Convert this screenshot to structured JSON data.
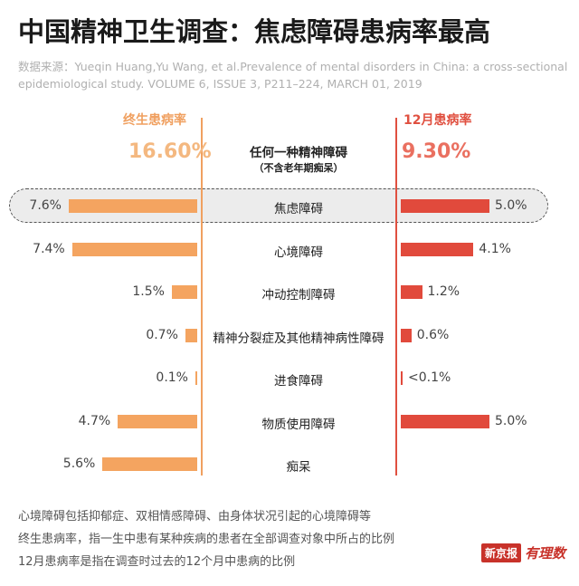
{
  "title": "中国精神卫生调查：焦虑障碍患病率最高",
  "source_line1": "数据来源：Yueqin Huang,Yu Wang, et al.Prevalence of mental disorders in China: a cross-sectional",
  "source_line2": "epidemiological study. VOLUME 6, ISSUE 3, P211–224, MARCH 01, 2019",
  "colors": {
    "lifetime": "#f4a460",
    "twelve_month": "#e14a3c",
    "highlight_bg": "#ececec"
  },
  "chart_data": {
    "type": "bar",
    "orientation": "horizontal-butterfly",
    "left_header": "终生患病率",
    "right_header": "12月患病率",
    "any_disorder": {
      "label": "任何一种精神障碍",
      "sublabel": "（不含老年期痴呆）",
      "lifetime_label": "16.60%",
      "twelve_month_label": "9.30%"
    },
    "highlighted_category": "焦虑障碍",
    "categories": [
      "焦虑障碍",
      "心境障碍",
      "冲动控制障碍",
      "精神分裂症及其他精神病性障碍",
      "进食障碍",
      "物质使用障碍",
      "痴呆"
    ],
    "series": [
      {
        "name": "终生患病率",
        "values": [
          7.6,
          7.4,
          1.5,
          0.7,
          0.1,
          4.7,
          5.6
        ],
        "labels": [
          "7.6%",
          "7.4%",
          "1.5%",
          "0.7%",
          "0.1%",
          "4.7%",
          "5.6%"
        ]
      },
      {
        "name": "12月患病率",
        "values": [
          5.0,
          4.1,
          1.2,
          0.6,
          0.1,
          5.0,
          null
        ],
        "labels": [
          "5.0%",
          "4.1%",
          "1.2%",
          "0.6%",
          "<0.1%",
          "5.0%",
          ""
        ]
      }
    ]
  },
  "footer": [
    "心境障碍包括抑郁症、双相情感障碍、由身体状况引起的心境障碍等",
    "终生患病率，指一生中患有某种疾病的患者在全部调查对象中所占的比例",
    "12月患病率是指在调查时过去的12个月中患病的比例"
  ],
  "logo": {
    "name": "新京报",
    "script": "有理数"
  }
}
